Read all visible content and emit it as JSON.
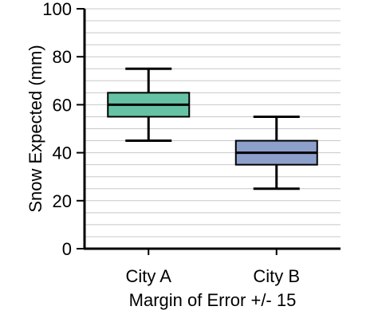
{
  "chart_data": {
    "type": "box",
    "categories": [
      "City A",
      "City B"
    ],
    "boxes": [
      {
        "category": "City A",
        "min": 45,
        "q1": 55,
        "median": 60,
        "q3": 65,
        "max": 75,
        "color": "#66c2a5"
      },
      {
        "category": "City B",
        "min": 25,
        "q1": 35,
        "median": 40,
        "q3": 45,
        "max": 55,
        "color": "#8da0cb"
      }
    ],
    "ylabel": "Snow Expected (mm)",
    "xlabel": "Margin of Error +/- 15",
    "ylim": [
      0,
      100
    ],
    "yticks": [
      0,
      20,
      40,
      60,
      80,
      100
    ],
    "grid": true,
    "grid_color": "#c8c8c8"
  }
}
